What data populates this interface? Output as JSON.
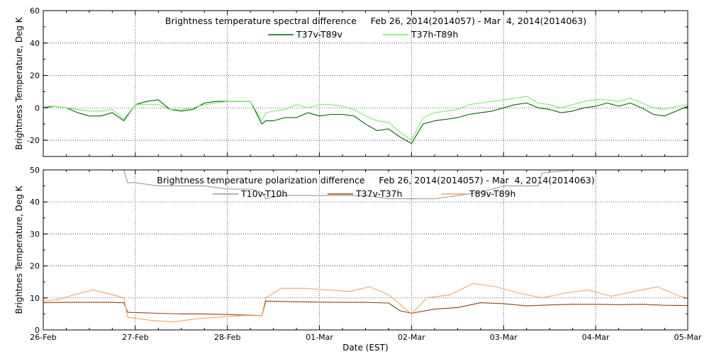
{
  "chart_data": [
    {
      "type": "line",
      "title": "Brightness temperature spectral difference     Feb 26, 2014(2014057) - Mar  4, 2014(2014063)",
      "xlabel": "",
      "ylabel": "Brightness Temperature, Deg K",
      "xlim": [
        "2014-02-26",
        "2014-03-05"
      ],
      "ylim": [
        -30,
        60
      ],
      "y_ticks": [
        -20,
        0,
        20,
        40,
        60
      ],
      "x_tick_labels": [
        "26-Feb",
        "27-Feb",
        "28-Feb",
        "01-Mar",
        "02-Mar",
        "03-Mar",
        "04-Mar",
        "05-Mar"
      ],
      "grid": true,
      "legend_position": "top-center",
      "series": [
        {
          "name": "T37v-T89v",
          "color": "#006400",
          "x": [
            "2014-02-26 00:00",
            "2014-02-26 03:00",
            "2014-02-26 06:00",
            "2014-02-26 09:00",
            "2014-02-26 12:00",
            "2014-02-26 15:00",
            "2014-02-26 18:00",
            "2014-02-26 21:00",
            "2014-02-27 00:00",
            "2014-02-27 03:00",
            "2014-02-27 06:00",
            "2014-02-27 09:00",
            "2014-02-27 12:00",
            "2014-02-27 15:00",
            "2014-02-27 18:00",
            "2014-02-27 21:00",
            "2014-02-28 00:00",
            "2014-02-28 03:00",
            "2014-02-28 06:00",
            "2014-02-28 09:00",
            "2014-02-28 10:00",
            "2014-02-28 12:00",
            "2014-02-28 15:00",
            "2014-02-28 18:00",
            "2014-02-28 21:00",
            "2014-03-01 00:00",
            "2014-03-01 03:00",
            "2014-03-01 06:00",
            "2014-03-01 09:00",
            "2014-03-01 12:00",
            "2014-03-01 15:00",
            "2014-03-01 18:00",
            "2014-03-01 21:00",
            "2014-03-02 00:00",
            "2014-03-02 03:00",
            "2014-03-02 06:00",
            "2014-03-02 09:00",
            "2014-03-02 12:00",
            "2014-03-02 15:00",
            "2014-03-02 18:00",
            "2014-03-02 21:00",
            "2014-03-03 00:00",
            "2014-03-03 03:00",
            "2014-03-03 06:00",
            "2014-03-03 09:00",
            "2014-03-03 12:00",
            "2014-03-03 15:00",
            "2014-03-03 18:00",
            "2014-03-03 21:00",
            "2014-03-04 00:00",
            "2014-03-04 03:00",
            "2014-03-04 06:00",
            "2014-03-04 09:00",
            "2014-03-04 12:00",
            "2014-03-04 15:00",
            "2014-03-04 18:00",
            "2014-03-04 21:00",
            "2014-03-05 00:00"
          ],
          "values": [
            0,
            1,
            0,
            -3,
            -5,
            -5,
            -3,
            -8,
            2,
            4,
            5,
            -1,
            -2,
            -1,
            3,
            4,
            4,
            4,
            4,
            -10,
            -8,
            -8,
            -6,
            -6,
            -3,
            -5,
            -4,
            -4,
            -5,
            -10,
            -14,
            -13,
            -18,
            -22,
            -10,
            -8,
            -7,
            -6,
            -4,
            -3,
            -2,
            0,
            2,
            3,
            0,
            -1,
            -3,
            -2,
            0,
            1,
            3,
            1,
            3,
            0,
            -4,
            -5,
            -2,
            1
          ]
        },
        {
          "name": "T37h-T89h",
          "color": "#7CEB6C",
          "x": [
            "2014-02-26 00:00",
            "2014-02-26 03:00",
            "2014-02-26 06:00",
            "2014-02-26 09:00",
            "2014-02-26 12:00",
            "2014-02-26 15:00",
            "2014-02-26 18:00",
            "2014-02-26 21:00",
            "2014-02-27 00:00",
            "2014-02-27 03:00",
            "2014-02-27 06:00",
            "2014-02-27 09:00",
            "2014-02-27 12:00",
            "2014-02-27 15:00",
            "2014-02-27 18:00",
            "2014-02-27 21:00",
            "2014-02-28 00:00",
            "2014-02-28 03:00",
            "2014-02-28 06:00",
            "2014-02-28 09:00",
            "2014-02-28 10:00",
            "2014-02-28 12:00",
            "2014-02-28 15:00",
            "2014-02-28 18:00",
            "2014-02-28 21:00",
            "2014-03-01 00:00",
            "2014-03-01 03:00",
            "2014-03-01 06:00",
            "2014-03-01 09:00",
            "2014-03-01 12:00",
            "2014-03-01 15:00",
            "2014-03-01 18:00",
            "2014-03-01 21:00",
            "2014-03-02 00:00",
            "2014-03-02 03:00",
            "2014-03-02 06:00",
            "2014-03-02 09:00",
            "2014-03-02 12:00",
            "2014-03-02 15:00",
            "2014-03-02 18:00",
            "2014-03-02 21:00",
            "2014-03-03 00:00",
            "2014-03-03 03:00",
            "2014-03-03 06:00",
            "2014-03-03 09:00",
            "2014-03-03 12:00",
            "2014-03-03 15:00",
            "2014-03-03 18:00",
            "2014-03-03 21:00",
            "2014-03-04 00:00",
            "2014-03-04 03:00",
            "2014-03-04 06:00",
            "2014-03-04 09:00",
            "2014-03-04 12:00",
            "2014-03-04 15:00",
            "2014-03-04 18:00",
            "2014-03-04 21:00",
            "2014-03-05 00:00"
          ],
          "values": [
            1,
            1,
            0,
            -1,
            -2,
            -2,
            -1,
            -7,
            2,
            2,
            2,
            -1,
            -1,
            0,
            2,
            3,
            4,
            4,
            4,
            -8,
            -3,
            -2,
            -1,
            2,
            0,
            2,
            2,
            1,
            -1,
            -5,
            -8,
            -9,
            -15,
            -20,
            -6,
            -3,
            -2,
            -1,
            2,
            3,
            4,
            5,
            6,
            7,
            3,
            2,
            0,
            2,
            4,
            5,
            5,
            4,
            6,
            3,
            0,
            -1,
            1,
            2
          ]
        }
      ]
    },
    {
      "type": "line",
      "title": "Brightness temperature polarization difference     Feb 26, 2014(2014057) - Mar  4, 2014(2014063)",
      "xlabel": "Date (EST)",
      "ylabel": "Brightnes Temperature, Deg K",
      "xlim": [
        "2014-02-26",
        "2014-03-05"
      ],
      "ylim": [
        0,
        50
      ],
      "y_ticks": [
        0,
        10,
        20,
        30,
        40,
        50
      ],
      "x_tick_labels": [
        "26-Feb",
        "27-Feb",
        "28-Feb",
        "01-Mar",
        "02-Mar",
        "03-Mar",
        "04-Mar",
        "05-Mar"
      ],
      "grid": true,
      "legend_position": "top-center",
      "series": [
        {
          "name": "T10v-T10h",
          "color": "#9A9A9A",
          "x": [
            "2014-02-26 21:00",
            "2014-02-26 22:00",
            "2014-02-27 00:00",
            "2014-02-27 06:00",
            "2014-02-27 12:00",
            "2014-02-27 18:00",
            "2014-02-28 00:00",
            "2014-02-28 06:00",
            "2014-02-28 09:00",
            "2014-02-28 10:00",
            "2014-02-28 14:00",
            "2014-02-28 20:00",
            "2014-03-01 04:00",
            "2014-03-01 12:00",
            "2014-03-01 18:00",
            "2014-03-02 00:00",
            "2014-03-02 06:00",
            "2014-03-02 12:00",
            "2014-03-02 18:00",
            "2014-03-03 00:00",
            "2014-03-03 06:00",
            "2014-03-03 09:00",
            "2014-03-03 10:00",
            "2014-03-03 18:00",
            "2014-03-04 00:00",
            "2014-03-04 06:00",
            "2014-03-04 12:00",
            "2014-03-04 18:00",
            "2014-03-05 00:00"
          ],
          "values": [
            50,
            46,
            46,
            45,
            45,
            45,
            44,
            44,
            43,
            41,
            42,
            42,
            42,
            42,
            41,
            41,
            41,
            42,
            43,
            45,
            45,
            45,
            49,
            50,
            50,
            50,
            50,
            50,
            50
          ]
        },
        {
          "name": "T37v-T37h",
          "color": "#8B4513",
          "x": [
            "2014-02-26 00:00",
            "2014-02-26 06:00",
            "2014-02-26 12:00",
            "2014-02-26 18:00",
            "2014-02-26 21:00",
            "2014-02-26 22:00",
            "2014-02-27 06:00",
            "2014-02-27 12:00",
            "2014-02-27 18:00",
            "2014-02-28 00:00",
            "2014-02-28 06:00",
            "2014-02-28 09:00",
            "2014-02-28 10:00",
            "2014-02-28 18:00",
            "2014-03-01 00:00",
            "2014-03-01 06:00",
            "2014-03-01 12:00",
            "2014-03-01 18:00",
            "2014-03-01 21:00",
            "2014-03-02 00:00",
            "2014-03-02 06:00",
            "2014-03-02 12:00",
            "2014-03-02 18:00",
            "2014-03-03 00:00",
            "2014-03-03 06:00",
            "2014-03-03 12:00",
            "2014-03-03 18:00",
            "2014-03-04 00:00",
            "2014-03-04 06:00",
            "2014-03-04 12:00",
            "2014-03-04 18:00",
            "2014-03-05 00:00"
          ],
          "values": [
            8.5,
            8.6,
            8.6,
            8.6,
            8.5,
            5.5,
            5.2,
            5.0,
            5.0,
            4.8,
            4.6,
            4.5,
            9.0,
            8.8,
            8.7,
            8.6,
            8.6,
            8.4,
            6.0,
            5.2,
            6.5,
            7.0,
            8.5,
            8.2,
            7.5,
            7.8,
            8.0,
            8.0,
            7.9,
            8.0,
            7.7,
            7.6
          ]
        },
        {
          "name": "T89v-T89h",
          "color": "#F4A460",
          "x": [
            "2014-02-26 00:00",
            "2014-02-26 04:00",
            "2014-02-26 08:00",
            "2014-02-26 13:00",
            "2014-02-26 18:00",
            "2014-02-26 21:00",
            "2014-02-26 22:00",
            "2014-02-27 04:00",
            "2014-02-27 10:00",
            "2014-02-27 16:00",
            "2014-02-27 22:00",
            "2014-02-28 04:00",
            "2014-02-28 09:00",
            "2014-02-28 10:00",
            "2014-02-28 14:00",
            "2014-02-28 20:00",
            "2014-03-01 02:00",
            "2014-03-01 08:00",
            "2014-03-01 13:00",
            "2014-03-01 18:00",
            "2014-03-01 21:00",
            "2014-03-02 00:00",
            "2014-03-02 04:00",
            "2014-03-02 10:00",
            "2014-03-02 16:00",
            "2014-03-02 22:00",
            "2014-03-03 04:00",
            "2014-03-03 10:00",
            "2014-03-03 16:00",
            "2014-03-03 22:00",
            "2014-03-04 04:00",
            "2014-03-04 10:00",
            "2014-03-04 16:00",
            "2014-03-04 22:00",
            "2014-03-05 00:00"
          ],
          "values": [
            9,
            9.5,
            11,
            12.5,
            11,
            10,
            4,
            3.0,
            2.5,
            3.5,
            4,
            4.5,
            4.5,
            10,
            13,
            13,
            12.5,
            12,
            13.5,
            11,
            8,
            5,
            10,
            11,
            14.5,
            13.5,
            11.5,
            10,
            11.5,
            12.5,
            10.5,
            12,
            13.5,
            10.5,
            10
          ]
        }
      ]
    }
  ]
}
